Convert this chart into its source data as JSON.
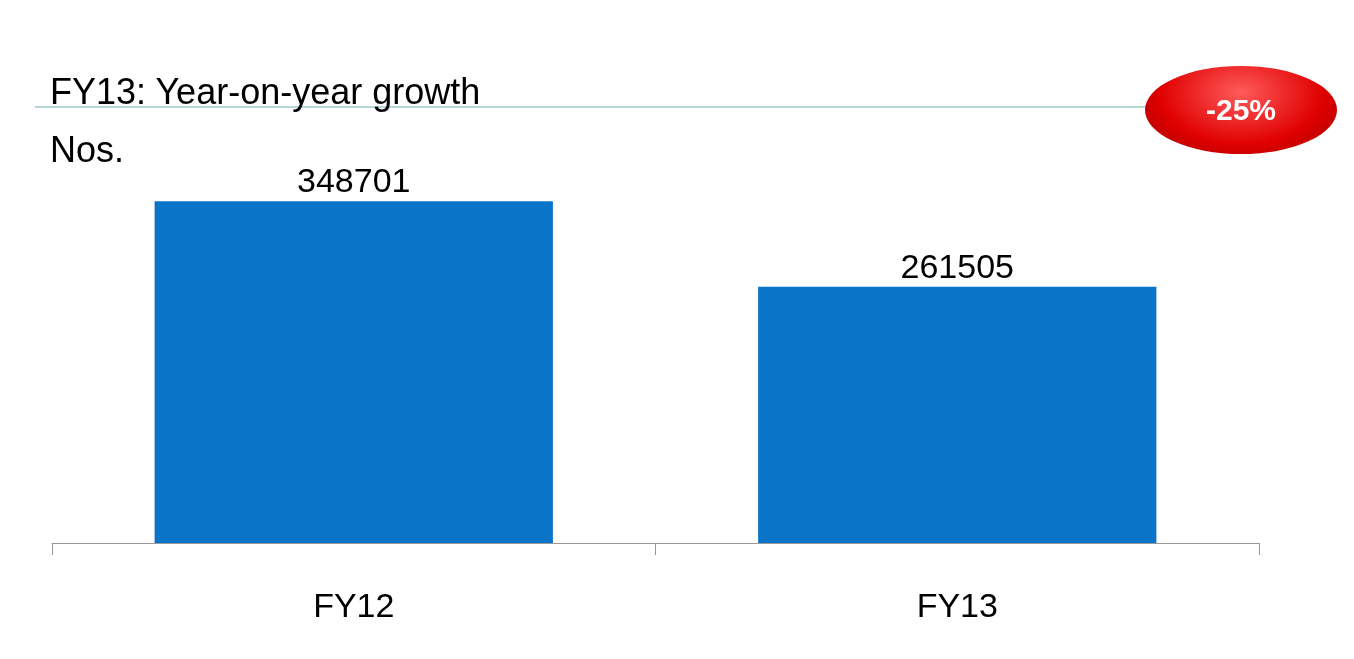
{
  "chart_data": {
    "type": "bar",
    "title": "FY13: Year-on-year growth",
    "subtitle": "Nos.",
    "categories": [
      "FY12",
      "FY13"
    ],
    "values": [
      348701,
      261505
    ],
    "color": "#0a74c8",
    "data_labels": true,
    "annotations": [
      "-25%"
    ]
  }
}
